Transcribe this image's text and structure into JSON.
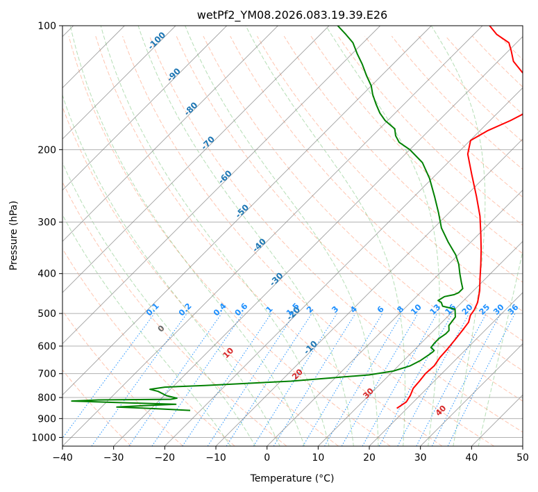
{
  "chart_data": {
    "type": "line",
    "title": "wetPf2_YM08.2026.083.19.39.E26",
    "xlabel": "Temperature (°C)",
    "ylabel": "Pressure (hPa)",
    "xlim": [
      -40,
      50
    ],
    "ylim": [
      1050,
      100
    ],
    "yscale": "log",
    "x_ticks": [
      "-40",
      "-30",
      "-20",
      "-10",
      "0",
      "10",
      "20",
      "30",
      "40",
      "50"
    ],
    "y_ticks": [
      "100",
      "200",
      "300",
      "400",
      "500",
      "600",
      "700",
      "800",
      "900",
      "1000"
    ],
    "grid": true,
    "colors": {
      "temperature": "#ff0000",
      "dewpoint": "#008000",
      "isotherms": "#808080",
      "dry_adiabats": "#ff7f50",
      "moist_adiabats": "#2ca02c",
      "mixing_ratio": "#1e90ff"
    },
    "isotherm_labels": [
      "-100",
      "-90",
      "-80",
      "-70",
      "-60",
      "-50",
      "-40",
      "-30",
      "-20",
      "-10"
    ],
    "mixing_ratio_labels": [
      "0.1",
      "0.2",
      "0.4",
      "0.6",
      "1",
      "1.5",
      "2",
      "3",
      "4",
      "6",
      "8",
      "10",
      "13",
      "16",
      "20",
      "25",
      "30",
      "36"
    ],
    "dry_adiabat_labels": [
      "0",
      "10",
      "20",
      "30",
      "40"
    ],
    "series": [
      {
        "key": "temperature",
        "color": "#ff0000",
        "points": [
          [
            18.0,
            850
          ],
          [
            18.6,
            820
          ],
          [
            18.1,
            790
          ],
          [
            17.3,
            760
          ],
          [
            17.1,
            730
          ],
          [
            16.8,
            700
          ],
          [
            17.0,
            670
          ],
          [
            16.5,
            640
          ],
          [
            16.3,
            610
          ],
          [
            16.0,
            580
          ],
          [
            15.6,
            550
          ],
          [
            15.2,
            525
          ],
          [
            14.2,
            505
          ],
          [
            13.9,
            490
          ],
          [
            13.1,
            470
          ],
          [
            11.2,
            440
          ],
          [
            8.8,
            410
          ],
          [
            6.3,
            380
          ],
          [
            3.5,
            350
          ],
          [
            0.3,
            320
          ],
          [
            -3.3,
            290
          ],
          [
            -7.8,
            260
          ],
          [
            -13.0,
            230
          ],
          [
            -17.8,
            205
          ],
          [
            -19.9,
            190
          ],
          [
            -18.5,
            180
          ],
          [
            -16.0,
            170
          ],
          [
            -14.0,
            160
          ],
          [
            -14.0,
            150
          ],
          [
            -17.6,
            140
          ],
          [
            -23.0,
            130
          ],
          [
            -27.0,
            122
          ],
          [
            -29.5,
            115
          ],
          [
            -31.5,
            110
          ],
          [
            -35.5,
            105
          ],
          [
            -38.6,
            100
          ]
        ]
      },
      {
        "key": "dewpoint",
        "color": "#008000",
        "points": [
          [
            -22.0,
            860
          ],
          [
            -28.0,
            853
          ],
          [
            -31.8,
            849
          ],
          [
            -37.0,
            844
          ],
          [
            -32.0,
            837
          ],
          [
            -26.0,
            831
          ],
          [
            -39.0,
            822
          ],
          [
            -47.0,
            816
          ],
          [
            -42.0,
            811
          ],
          [
            -28.0,
            808
          ],
          [
            -27.0,
            803
          ],
          [
            -29.5,
            792
          ],
          [
            -32.0,
            773
          ],
          [
            -34.0,
            764
          ],
          [
            -31.5,
            755
          ],
          [
            -24.0,
            748
          ],
          [
            -8.0,
            730
          ],
          [
            6.0,
            705
          ],
          [
            10.0,
            690
          ],
          [
            12.3,
            670
          ],
          [
            13.3,
            650
          ],
          [
            13.8,
            630
          ],
          [
            14.0,
            620
          ],
          [
            14.0,
            615
          ],
          [
            12.8,
            605
          ],
          [
            12.6,
            590
          ],
          [
            12.6,
            575
          ],
          [
            13.0,
            560
          ],
          [
            13.0,
            550
          ],
          [
            12.0,
            535
          ],
          [
            11.6,
            510
          ],
          [
            10.0,
            488
          ],
          [
            7.0,
            480
          ],
          [
            6.0,
            470
          ],
          [
            5.0,
            465
          ],
          [
            5.5,
            455
          ],
          [
            7.0,
            450
          ],
          [
            7.5,
            445
          ],
          [
            7.5,
            435
          ],
          [
            6.0,
            420
          ],
          [
            4.0,
            400
          ],
          [
            2.0,
            380
          ],
          [
            -0.5,
            360
          ],
          [
            -4.5,
            335
          ],
          [
            -8.5,
            310
          ],
          [
            -12.0,
            285
          ],
          [
            -16.0,
            260
          ],
          [
            -20.5,
            235
          ],
          [
            -25.0,
            215
          ],
          [
            -30.0,
            200
          ],
          [
            -33.5,
            192
          ],
          [
            -35.5,
            185
          ],
          [
            -37.0,
            178
          ],
          [
            -40.5,
            170
          ],
          [
            -43.0,
            163
          ],
          [
            -45.5,
            155
          ],
          [
            -48.0,
            147
          ],
          [
            -50.0,
            140
          ],
          [
            -53.0,
            132
          ],
          [
            -56.0,
            124
          ],
          [
            -59.0,
            117
          ],
          [
            -62.0,
            110
          ],
          [
            -65.0,
            105
          ],
          [
            -68.3,
            100
          ]
        ]
      }
    ]
  }
}
